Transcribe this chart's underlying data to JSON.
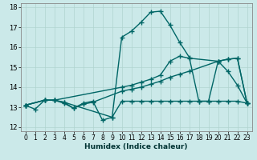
{
  "xlabel": "Humidex (Indice chaleur)",
  "ylabel": "",
  "bg_color": "#cbe9e9",
  "grid_color": "#b0d4d0",
  "line_color": "#006666",
  "xlim": [
    -0.5,
    23.5
  ],
  "ylim": [
    11.8,
    18.2
  ],
  "xticks": [
    0,
    1,
    2,
    3,
    4,
    5,
    6,
    7,
    8,
    9,
    10,
    11,
    12,
    13,
    14,
    15,
    16,
    17,
    18,
    19,
    20,
    21,
    22,
    23
  ],
  "yticks": [
    12,
    13,
    14,
    15,
    16,
    17,
    18
  ],
  "lines": [
    {
      "x": [
        0,
        1,
        2,
        3,
        4,
        5,
        6,
        7,
        8,
        9,
        10,
        11,
        12,
        13,
        14,
        15,
        16,
        17,
        18,
        19,
        20,
        21,
        22,
        23
      ],
      "y": [
        13.1,
        12.9,
        13.35,
        13.35,
        13.2,
        12.95,
        13.2,
        13.3,
        12.35,
        12.5,
        16.5,
        16.8,
        17.25,
        17.75,
        17.8,
        17.1,
        16.25,
        15.5,
        13.3,
        13.3,
        15.3,
        14.8,
        14.1,
        13.2
      ],
      "marker": "+",
      "markersize": 4,
      "lw": 1.0
    },
    {
      "x": [
        0,
        2,
        3,
        4,
        5,
        6,
        7,
        10,
        11,
        12,
        13,
        14,
        15,
        16,
        17,
        20,
        21,
        22,
        23
      ],
      "y": [
        13.1,
        13.35,
        13.35,
        13.25,
        12.95,
        13.15,
        13.25,
        13.8,
        13.9,
        14.0,
        14.15,
        14.3,
        14.5,
        14.65,
        14.8,
        15.3,
        15.4,
        15.45,
        13.2
      ],
      "marker": "+",
      "markersize": 4,
      "lw": 1.0
    },
    {
      "x": [
        0,
        2,
        3,
        10,
        11,
        12,
        13,
        14,
        15,
        16,
        17,
        20,
        21,
        22,
        23
      ],
      "y": [
        13.1,
        13.35,
        13.35,
        14.0,
        14.1,
        14.25,
        14.4,
        14.6,
        15.3,
        15.55,
        15.45,
        15.3,
        15.4,
        15.45,
        13.2
      ],
      "marker": "+",
      "markersize": 4,
      "lw": 1.0
    },
    {
      "x": [
        0,
        2,
        3,
        4,
        9,
        10,
        11,
        12,
        13,
        14,
        15,
        16,
        17,
        18,
        19,
        20,
        21,
        22,
        23
      ],
      "y": [
        13.1,
        13.35,
        13.35,
        13.25,
        12.5,
        13.3,
        13.3,
        13.3,
        13.3,
        13.3,
        13.3,
        13.3,
        13.3,
        13.3,
        13.3,
        13.3,
        13.3,
        13.3,
        13.2
      ],
      "marker": "+",
      "markersize": 4,
      "lw": 1.0
    }
  ]
}
